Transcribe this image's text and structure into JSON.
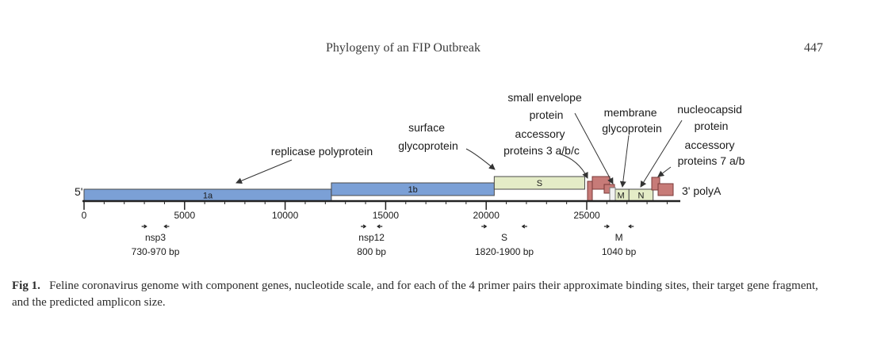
{
  "header": {
    "running_title": "Phylogeny of an FIP Outbreak",
    "page_number": "447"
  },
  "figure": {
    "ends": {
      "five_prime": "5'",
      "three_prime": "3' polyA"
    },
    "genes": [
      {
        "id": "1a",
        "label": "1a",
        "start": 0,
        "end": 12300,
        "color": "#7ba0d6"
      },
      {
        "id": "1b",
        "label": "1b",
        "start": 12300,
        "end": 20400,
        "color": "#7ba0d6"
      },
      {
        "id": "S",
        "label": "S",
        "start": 20400,
        "end": 24900,
        "color": "#e4ecc7"
      },
      {
        "id": "M",
        "label": "M",
        "start": 26300,
        "end": 27100,
        "color": "#e4ecc7"
      },
      {
        "id": "N",
        "label": "N",
        "start": 27100,
        "end": 28300,
        "color": "#e4ecc7"
      }
    ],
    "accessory_colors": {
      "fill": "#c77b78",
      "stroke": "#7a3a38"
    },
    "annotations": [
      "replicase polyprotein",
      "surface glycoprotein",
      "small envelope protein",
      "accessory proteins 3 a/b/c",
      "membrane glycoprotein",
      "nucleocapsid protein",
      "accessory proteins 7 a/b"
    ],
    "annotation_lines": {
      "replicase polyprotein": [
        "replicase polyprotein"
      ],
      "surface glycoprotein": [
        "surface",
        "glycoprotein"
      ],
      "small envelope protein": [
        "small envelope",
        "protein"
      ],
      "accessory proteins 3 a/b/c": [
        "accessory",
        "proteins 3 a/b/c"
      ],
      "membrane glycoprotein": [
        "membrane",
        "glycoprotein"
      ],
      "nucleocapsid protein": [
        "nucleocapsid",
        "protein"
      ],
      "accessory proteins 7 a/b": [
        "accessory",
        "proteins 7 a/b"
      ]
    },
    "scale": {
      "min": 0,
      "max": 30000,
      "major_ticks": [
        0,
        5000,
        10000,
        15000,
        20000,
        25000
      ],
      "minor_step": 1000
    },
    "primer_pairs": [
      {
        "gene": "nsp3",
        "size": "730-970 bp",
        "forward": 3100,
        "reverse": 4000
      },
      {
        "gene": "nsp12",
        "size": "800 bp",
        "forward": 14000,
        "reverse": 14600
      },
      {
        "gene": "S",
        "size": "1820-1900 bp",
        "forward": 20000,
        "reverse": 21800
      },
      {
        "gene": "M",
        "size": "1040 bp",
        "forward": 26100,
        "reverse": 27100
      }
    ]
  },
  "caption": {
    "label": "Fig 1.",
    "text": "Feline coronavirus genome with component genes, nucleotide scale, and for each of the 4 primer pairs their approximate binding sites, their target gene fragment, and the predicted amplicon size."
  }
}
